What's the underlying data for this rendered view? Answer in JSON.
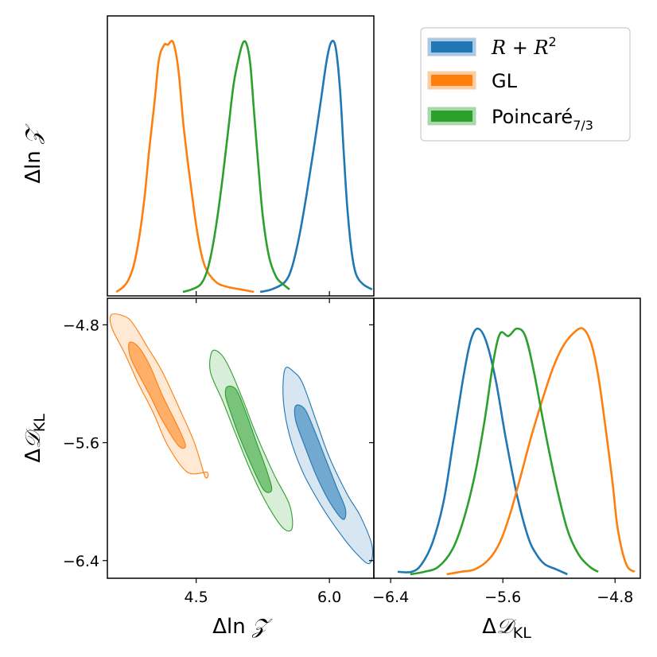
{
  "chart_data": {
    "type": "corner-plot",
    "title": "",
    "parameters": [
      {
        "name": "dlnZ",
        "label_delta": "Δ",
        "label_ln": "ln ",
        "label_symbol": "𝒵",
        "range": [
          3.5,
          6.5
        ],
        "ticks": [
          4.5,
          6.0
        ],
        "tick_labels": [
          "4.5",
          "6.0"
        ]
      },
      {
        "name": "dKL",
        "label_delta": "Δ",
        "label_symbol": "𝒟",
        "label_sub": "KL",
        "range": [
          -6.52,
          -4.62
        ],
        "ticks": [
          -6.4,
          -5.6,
          -4.8
        ],
        "tick_labels": [
          "−6.4",
          "−5.6",
          "−4.8"
        ]
      }
    ],
    "legend": {
      "placement": "top-right",
      "entries": [
        {
          "series": "RR2",
          "text_R": "R",
          "text_plus": " + ",
          "text_R2": "R",
          "text_sup": "2"
        },
        {
          "series": "GL",
          "text": "GL"
        },
        {
          "series": "Poincare",
          "text": "Poincaré",
          "text_sub": "7/3"
        }
      ]
    },
    "series": [
      {
        "key": "RR2",
        "name": "R + R²",
        "color": "#1f77b4",
        "fill": "#1f77b4",
        "lnZ_marginal": {
          "x": [
            5.22,
            5.35,
            5.5,
            5.58,
            5.66,
            5.74,
            5.82,
            5.9,
            5.97,
            6.02,
            6.07,
            6.12,
            6.16,
            6.2,
            6.25,
            6.3,
            6.38,
            6.48
          ],
          "y": [
            0.0,
            0.01,
            0.04,
            0.1,
            0.22,
            0.38,
            0.56,
            0.75,
            0.92,
            0.99,
            0.97,
            0.8,
            0.56,
            0.34,
            0.16,
            0.07,
            0.03,
            0.01
          ]
        },
        "KL_marginal": {
          "x": [
            -6.35,
            -6.25,
            -6.18,
            -6.1,
            -6.02,
            -5.95,
            -5.88,
            -5.83,
            -5.78,
            -5.72,
            -5.65,
            -5.58,
            -5.5,
            -5.42,
            -5.36,
            -5.3,
            -5.22,
            -5.14
          ],
          "y": [
            0.01,
            0.01,
            0.04,
            0.13,
            0.3,
            0.55,
            0.8,
            0.94,
            0.99,
            0.94,
            0.78,
            0.55,
            0.32,
            0.15,
            0.08,
            0.04,
            0.02,
            0.0
          ]
        },
        "contour_outer": [
          [
            5.5,
            -5.1
          ],
          [
            5.6,
            -5.12
          ],
          [
            5.7,
            -5.2
          ],
          [
            5.85,
            -5.45
          ],
          [
            6.0,
            -5.7
          ],
          [
            6.2,
            -5.95
          ],
          [
            6.35,
            -6.1
          ],
          [
            6.48,
            -6.3
          ],
          [
            6.45,
            -6.42
          ],
          [
            6.3,
            -6.35
          ],
          [
            6.1,
            -6.2
          ],
          [
            5.9,
            -6.02
          ],
          [
            5.7,
            -5.8
          ],
          [
            5.55,
            -5.55
          ],
          [
            5.48,
            -5.3
          ]
        ],
        "contour_inner": [
          [
            5.62,
            -5.35
          ],
          [
            5.72,
            -5.37
          ],
          [
            5.82,
            -5.5
          ],
          [
            5.95,
            -5.7
          ],
          [
            6.08,
            -5.9
          ],
          [
            6.18,
            -6.05
          ],
          [
            6.15,
            -6.12
          ],
          [
            6.0,
            -6.0
          ],
          [
            5.85,
            -5.82
          ],
          [
            5.72,
            -5.62
          ],
          [
            5.62,
            -5.45
          ]
        ]
      },
      {
        "key": "GL",
        "name": "GL",
        "color": "#ff7f0e",
        "fill": "#ff7f0e",
        "lnZ_marginal": {
          "x": [
            3.6,
            3.68,
            3.74,
            3.8,
            3.86,
            3.92,
            3.97,
            4.03,
            4.08,
            4.14,
            4.18,
            4.24,
            4.3,
            4.36,
            4.44,
            4.52,
            4.6,
            4.72,
            4.85,
            5.0,
            5.15
          ],
          "y": [
            0.0,
            0.02,
            0.05,
            0.11,
            0.22,
            0.38,
            0.56,
            0.75,
            0.92,
            0.98,
            0.98,
            0.99,
            0.88,
            0.65,
            0.42,
            0.22,
            0.1,
            0.04,
            0.02,
            0.01,
            0.0
          ]
        },
        "KL_marginal": {
          "x": [
            -6.0,
            -5.9,
            -5.8,
            -5.7,
            -5.62,
            -5.55,
            -5.48,
            -5.4,
            -5.32,
            -5.25,
            -5.18,
            -5.1,
            -5.03,
            -4.97,
            -4.92,
            -4.87,
            -4.82,
            -4.78,
            -4.72,
            -4.66
          ],
          "y": [
            0.0,
            0.01,
            0.02,
            0.06,
            0.13,
            0.24,
            0.38,
            0.55,
            0.7,
            0.82,
            0.91,
            0.97,
            0.99,
            0.93,
            0.8,
            0.6,
            0.38,
            0.18,
            0.04,
            0.01
          ]
        },
        "contour_outer": [
          [
            3.55,
            -4.73
          ],
          [
            3.72,
            -4.75
          ],
          [
            3.82,
            -4.82
          ],
          [
            3.95,
            -4.95
          ],
          [
            4.12,
            -5.12
          ],
          [
            4.32,
            -5.38
          ],
          [
            4.48,
            -5.6
          ],
          [
            4.6,
            -5.83
          ],
          [
            4.62,
            -5.8
          ],
          [
            4.4,
            -5.8
          ],
          [
            4.18,
            -5.62
          ],
          [
            4.02,
            -5.4
          ],
          [
            3.85,
            -5.2
          ],
          [
            3.7,
            -5.0
          ],
          [
            3.55,
            -4.82
          ]
        ],
        "contour_inner": [
          [
            3.75,
            -4.92
          ],
          [
            3.85,
            -4.95
          ],
          [
            3.98,
            -5.08
          ],
          [
            4.12,
            -5.28
          ],
          [
            4.3,
            -5.5
          ],
          [
            4.38,
            -5.62
          ],
          [
            4.3,
            -5.62
          ],
          [
            4.12,
            -5.45
          ],
          [
            3.98,
            -5.28
          ],
          [
            3.82,
            -5.1
          ],
          [
            3.75,
            -5.0
          ]
        ]
      },
      {
        "key": "Poincare",
        "name": "Poincaré 7/3",
        "color": "#2ca02c",
        "fill": "#2ca02c",
        "lnZ_marginal": {
          "x": [
            4.35,
            4.45,
            4.55,
            4.62,
            4.68,
            4.74,
            4.8,
            4.86,
            4.92,
            4.98,
            5.03,
            5.07,
            5.11,
            5.15,
            5.2,
            5.25,
            5.32,
            5.4,
            5.48,
            5.55
          ],
          "y": [
            0.0,
            0.01,
            0.03,
            0.08,
            0.17,
            0.3,
            0.46,
            0.64,
            0.82,
            0.93,
            0.99,
            0.98,
            0.9,
            0.72,
            0.5,
            0.3,
            0.14,
            0.06,
            0.03,
            0.01
          ]
        },
        "KL_marginal": {
          "x": [
            -6.26,
            -6.16,
            -6.06,
            -5.96,
            -5.88,
            -5.8,
            -5.73,
            -5.67,
            -5.62,
            -5.56,
            -5.5,
            -5.44,
            -5.38,
            -5.3,
            -5.22,
            -5.14,
            -5.06,
            -4.98,
            -4.92
          ],
          "y": [
            0.0,
            0.01,
            0.03,
            0.1,
            0.22,
            0.4,
            0.62,
            0.85,
            0.97,
            0.96,
            0.99,
            0.96,
            0.82,
            0.58,
            0.36,
            0.18,
            0.08,
            0.03,
            0.01
          ]
        },
        "contour_outer": [
          [
            4.68,
            -4.98
          ],
          [
            4.78,
            -5.0
          ],
          [
            4.88,
            -5.1
          ],
          [
            5.02,
            -5.3
          ],
          [
            5.18,
            -5.55
          ],
          [
            5.38,
            -5.82
          ],
          [
            5.55,
            -6.02
          ],
          [
            5.58,
            -6.18
          ],
          [
            5.48,
            -6.18
          ],
          [
            5.3,
            -6.02
          ],
          [
            5.12,
            -5.8
          ],
          [
            4.95,
            -5.55
          ],
          [
            4.8,
            -5.32
          ],
          [
            4.66,
            -5.12
          ]
        ],
        "contour_inner": [
          [
            4.85,
            -5.22
          ],
          [
            4.95,
            -5.24
          ],
          [
            5.05,
            -5.38
          ],
          [
            5.18,
            -5.6
          ],
          [
            5.3,
            -5.8
          ],
          [
            5.35,
            -5.92
          ],
          [
            5.26,
            -5.92
          ],
          [
            5.12,
            -5.75
          ],
          [
            4.98,
            -5.55
          ],
          [
            4.88,
            -5.38
          ],
          [
            4.83,
            -5.28
          ]
        ]
      }
    ]
  }
}
